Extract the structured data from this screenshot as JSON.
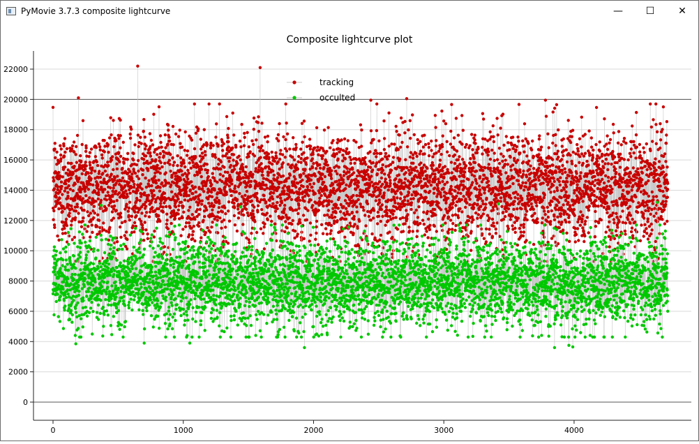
{
  "window": {
    "title": "PyMovie 3.7.3 composite lightcurve",
    "minimize_glyph": "—",
    "maximize_glyph": "☐",
    "close_glyph": "✕"
  },
  "chart_data": {
    "type": "scatter",
    "title": "Composite lightcurve plot",
    "xlabel": "",
    "ylabel": "",
    "xlim": [
      -150,
      4900
    ],
    "ylim": [
      -1200,
      23200
    ],
    "x_ticks": [
      0,
      1000,
      2000,
      3000,
      4000
    ],
    "y_ticks": [
      0,
      2000,
      4000,
      6000,
      8000,
      10000,
      12000,
      14000,
      16000,
      18000,
      20000,
      22000
    ],
    "grid": true,
    "reference_lines_y": [
      0,
      20000
    ],
    "legend_position": "top-center",
    "point_count_per_series": 4720,
    "series": [
      {
        "name": "tracking",
        "color": "#c80000",
        "marker": "circle",
        "connected": true,
        "typical_range": [
          10000,
          19000
        ],
        "mean": 14200,
        "std": 1900,
        "extremes": [
          [
            650,
            22200
          ],
          [
            1590,
            22100
          ],
          [
            3780,
            22600
          ],
          [
            195,
            20100
          ],
          [
            2440,
            19950
          ],
          [
            2715,
            20050
          ],
          [
            3780,
            19950
          ],
          [
            1380,
            19100
          ],
          [
            420,
            9500
          ],
          [
            2720,
            9600
          ],
          [
            4650,
            9500
          ]
        ]
      },
      {
        "name": "occulted",
        "color": "#00c800",
        "marker": "circle",
        "connected": true,
        "typical_range": [
          5000,
          11000
        ],
        "mean": 7900,
        "std": 1400,
        "extremes": [
          [
            1050,
            3450
          ],
          [
            1050,
            3900
          ],
          [
            700,
            3900
          ],
          [
            175,
            3850
          ],
          [
            1930,
            3600
          ],
          [
            3850,
            3600
          ],
          [
            3960,
            3750
          ],
          [
            3990,
            3650
          ],
          [
            1440,
            12900
          ],
          [
            370,
            13000
          ],
          [
            3420,
            13100
          ],
          [
            4640,
            13200
          ]
        ]
      }
    ]
  }
}
